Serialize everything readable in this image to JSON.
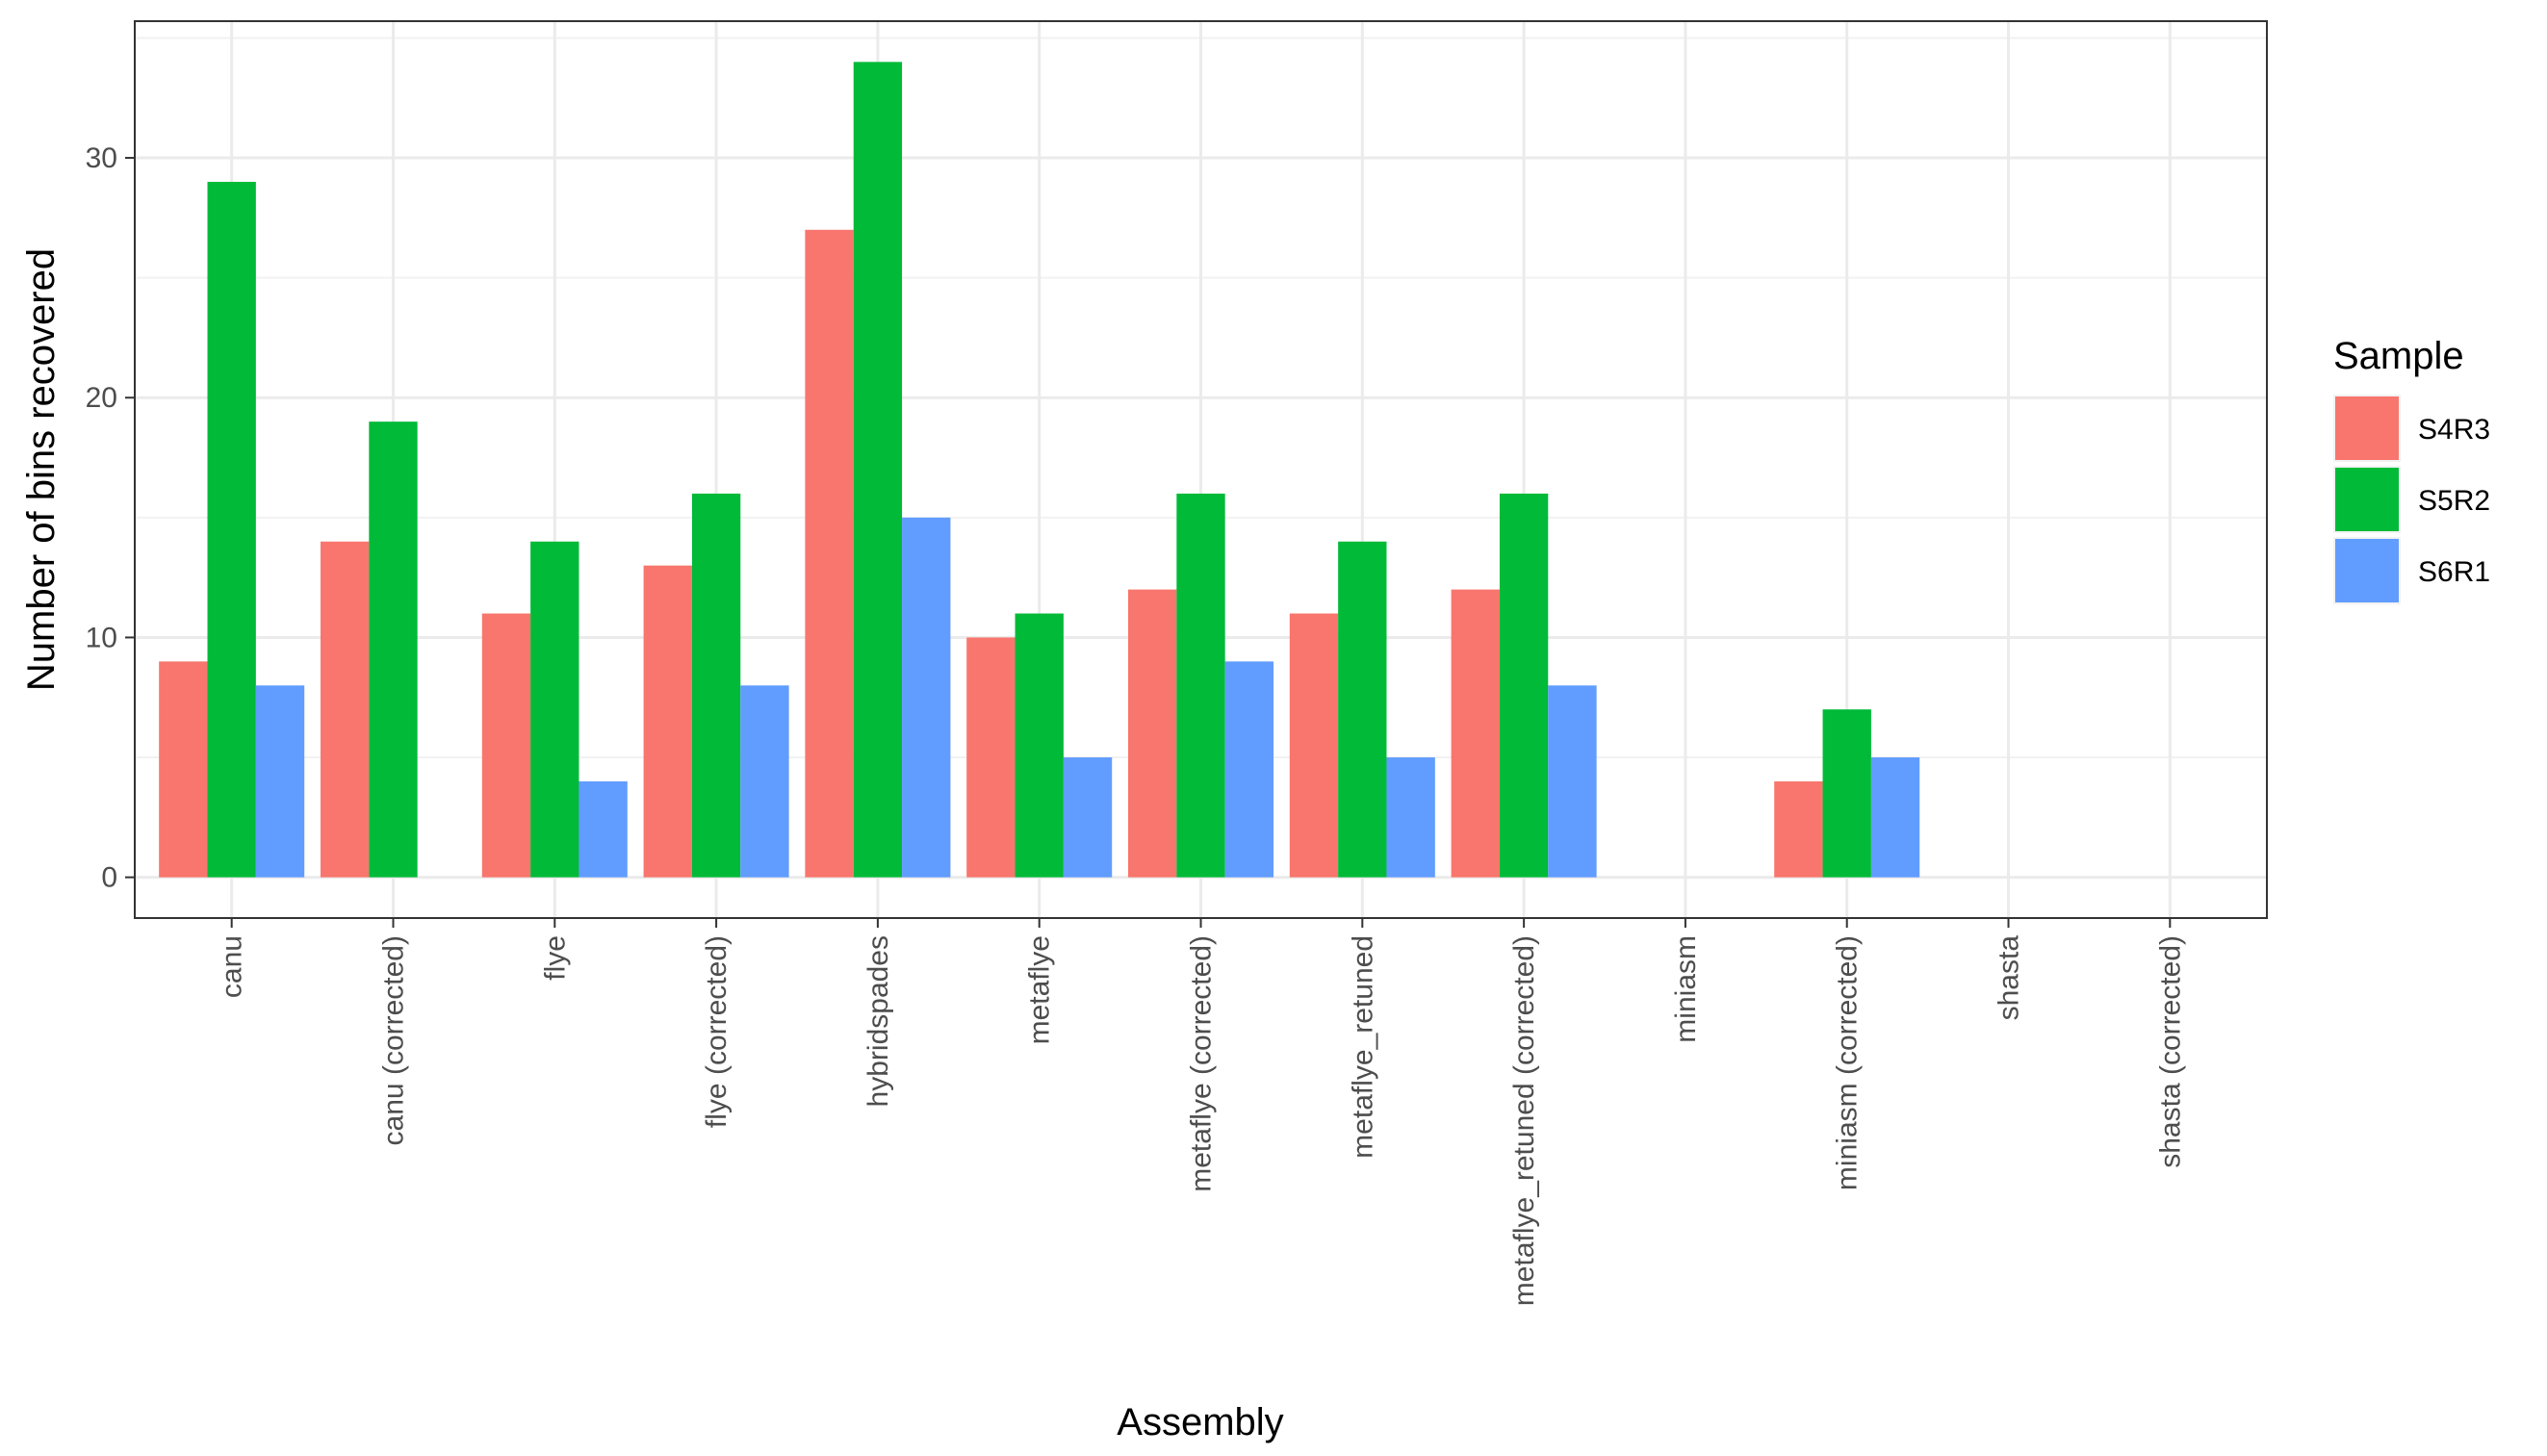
{
  "chart_data": {
    "type": "bar",
    "xlabel": "Assembly",
    "ylabel": "Number of bins recovered",
    "ylim": [
      -1.7,
      35.7
    ],
    "yticks": [
      0,
      10,
      20,
      30
    ],
    "grid": true,
    "legend_position": "right",
    "legend_title": "Sample",
    "categories": [
      "canu",
      "canu (corrected)",
      "flye",
      "flye (corrected)",
      "hybridspades",
      "metaflye",
      "metaflye (corrected)",
      "metaflye_retuned",
      "metaflye_retuned (corrected)",
      "miniasm",
      "miniasm (corrected)",
      "shasta",
      "shasta (corrected)"
    ],
    "series": [
      {
        "name": "S4R3",
        "color": "#F8766D",
        "values": [
          9,
          14,
          11,
          13,
          27,
          10,
          12,
          11,
          12,
          null,
          4,
          null,
          null
        ]
      },
      {
        "name": "S5R2",
        "color": "#00BA38",
        "values": [
          29,
          19,
          14,
          16,
          34,
          11,
          16,
          14,
          16,
          null,
          7,
          null,
          null
        ]
      },
      {
        "name": "S6R1",
        "color": "#619CFF",
        "values": [
          8,
          null,
          4,
          8,
          15,
          5,
          9,
          5,
          8,
          null,
          5,
          null,
          null
        ]
      }
    ]
  }
}
